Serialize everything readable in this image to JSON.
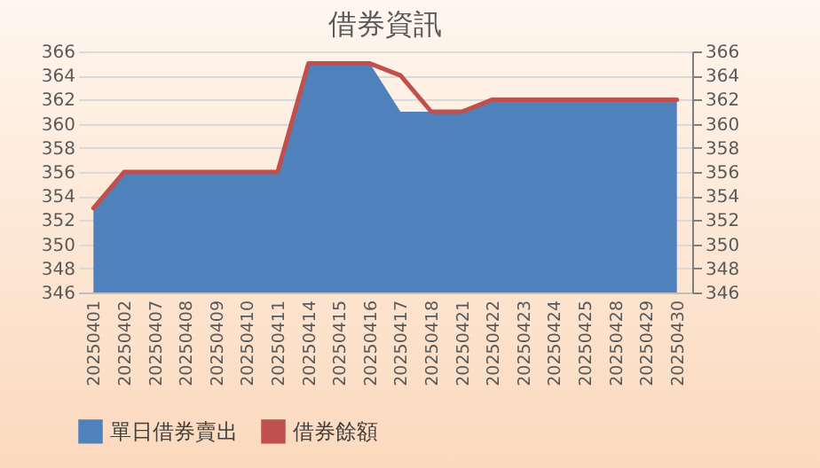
{
  "chart_data": {
    "type": "area",
    "title": "借券資訊",
    "categories": [
      "20250401",
      "20250402",
      "20250407",
      "20250408",
      "20250409",
      "20250410",
      "20250411",
      "20250414",
      "20250415",
      "20250416",
      "20250417",
      "20250418",
      "20250421",
      "20250422",
      "20250423",
      "20250424",
      "20250425",
      "20250428",
      "20250429",
      "20250430"
    ],
    "series": [
      {
        "name": "單日借券賣出",
        "color": "#4f81bd",
        "values": [
          353,
          356,
          356,
          356,
          356,
          356,
          356,
          365,
          365,
          365,
          361,
          361,
          361,
          362,
          362,
          362,
          362,
          362,
          362,
          362
        ]
      },
      {
        "name": "借券餘額",
        "color": "#c0504d",
        "type": "line",
        "axis": "y2",
        "values": [
          353,
          356,
          356,
          356,
          356,
          356,
          356,
          365,
          365,
          365,
          364,
          361,
          361,
          362,
          362,
          362,
          362,
          362,
          362,
          362
        ]
      }
    ],
    "ylim": [
      346,
      366
    ],
    "yticks": [
      346,
      348,
      350,
      352,
      354,
      356,
      358,
      360,
      362,
      364,
      366
    ],
    "y2lim": [
      346,
      366
    ],
    "y2ticks": [
      346,
      348,
      350,
      352,
      354,
      356,
      358,
      360,
      362,
      364,
      366
    ],
    "grid": "y",
    "legend": "bottom"
  }
}
